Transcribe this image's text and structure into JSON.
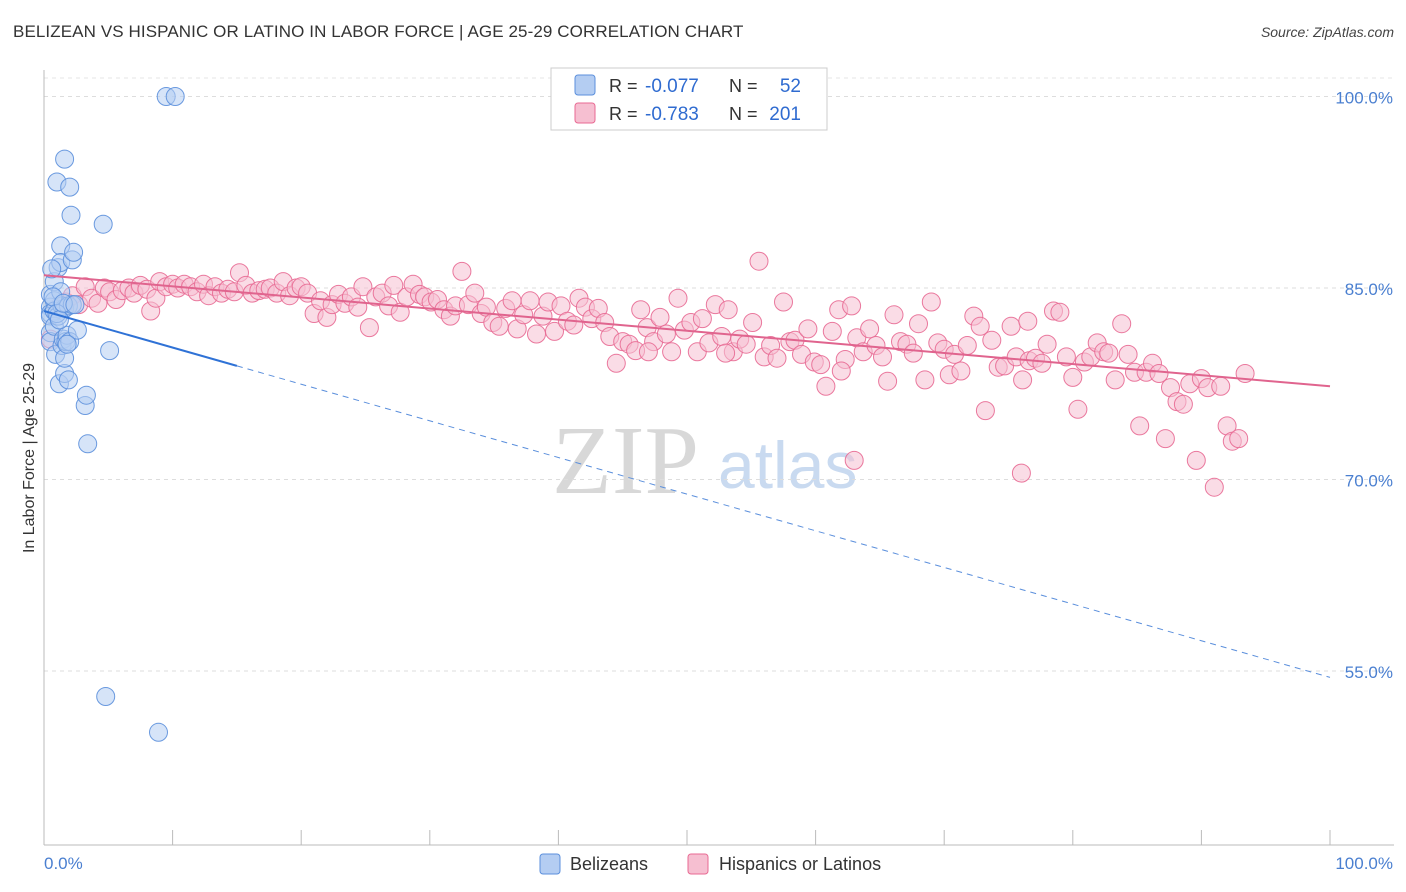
{
  "header": {
    "title": "BELIZEAN VS HISPANIC OR LATINO IN LABOR FORCE | AGE 25-29 CORRELATION CHART",
    "source": "Source: ZipAtlas.com"
  },
  "watermark": {
    "zip": "ZIP",
    "atlas": "atlas"
  },
  "colors": {
    "belizean": "#5b8fdc",
    "belizean_fill": "#b4cdf2",
    "hispanic": "#e86a93",
    "hispanic_fill": "#f6bfd1",
    "tick": "#4a7fd0"
  },
  "stats_legend": {
    "rows": [
      {
        "r_label": "R =",
        "r_value": "-0.077",
        "n_label": "N =",
        "n_value": "52"
      },
      {
        "r_label": "R =",
        "r_value": "-0.783",
        "n_label": "N =",
        "n_value": "201"
      }
    ]
  },
  "bottom_legend": {
    "items": [
      {
        "label": "Belizeans"
      },
      {
        "label": "Hispanics or Latinos"
      }
    ]
  },
  "chart_data": {
    "type": "scatter",
    "title": "BELIZEAN VS HISPANIC OR LATINO IN LABOR FORCE | AGE 25-29 CORRELATION CHART",
    "xlabel": "",
    "ylabel": "In Labor Force | Age 25-29",
    "xlim": [
      0,
      100
    ],
    "ylim": [
      40,
      102
    ],
    "x_tick_labels": [
      "0.0%",
      "100.0%"
    ],
    "y_ticks": [
      55,
      70,
      85,
      100
    ],
    "y_tick_labels": [
      "55.0%",
      "70.0%",
      "85.0%",
      "100.0%"
    ],
    "grid": true,
    "legend_position": "top-center",
    "series": [
      {
        "name": "Belizeans",
        "color": "#5b8fdc",
        "trend": {
          "x": [
            0,
            15
          ],
          "y": [
            83.2,
            78.9
          ],
          "dashed_extension_to": [
            100,
            54.5
          ]
        },
        "points": [
          [
            0.5,
            84.5
          ],
          [
            0.5,
            83.5
          ],
          [
            0.5,
            83.0
          ],
          [
            0.5,
            82.8
          ],
          [
            0.5,
            81.5
          ],
          [
            0.5,
            80.8
          ],
          [
            0.8,
            85.5
          ],
          [
            0.8,
            84.0
          ],
          [
            0.8,
            83.2
          ],
          [
            0.8,
            82.0
          ],
          [
            0.9,
            79.8
          ],
          [
            1.0,
            93.3
          ],
          [
            1.1,
            86.6
          ],
          [
            1.1,
            82.8
          ],
          [
            1.2,
            77.5
          ],
          [
            1.3,
            88.3
          ],
          [
            1.3,
            87.0
          ],
          [
            1.3,
            84.7
          ],
          [
            1.4,
            83.6
          ],
          [
            1.4,
            80.5
          ],
          [
            1.5,
            81.0
          ],
          [
            1.6,
            78.3
          ],
          [
            1.6,
            79.5
          ],
          [
            1.6,
            83.4
          ],
          [
            1.6,
            95.1
          ],
          [
            1.7,
            80.8
          ],
          [
            1.8,
            81.3
          ],
          [
            1.9,
            83.6
          ],
          [
            1.9,
            77.8
          ],
          [
            2.0,
            92.9
          ],
          [
            2.0,
            80.8
          ],
          [
            2.1,
            90.7
          ],
          [
            2.2,
            83.7
          ],
          [
            2.2,
            87.2
          ],
          [
            2.3,
            87.8
          ],
          [
            2.6,
            81.7
          ],
          [
            3.2,
            75.8
          ],
          [
            3.3,
            76.6
          ],
          [
            3.4,
            72.8
          ],
          [
            4.6,
            90.0
          ],
          [
            4.8,
            53.0
          ],
          [
            5.1,
            80.1
          ],
          [
            8.9,
            50.2
          ],
          [
            9.5,
            100.0
          ],
          [
            10.2,
            100.0
          ],
          [
            0.6,
            86.5
          ],
          [
            0.7,
            84.3
          ],
          [
            1.0,
            83.0
          ],
          [
            1.2,
            82.5
          ],
          [
            1.5,
            83.8
          ],
          [
            1.8,
            80.6
          ],
          [
            2.4,
            83.7
          ]
        ]
      },
      {
        "name": "Hispanics or Latinos",
        "color": "#e86a93",
        "trend": {
          "x": [
            0,
            100
          ],
          "y": [
            86.0,
            77.3
          ]
        },
        "points": [
          [
            0.5,
            81.0
          ],
          [
            1.0,
            83.4
          ],
          [
            1.7,
            83.9
          ],
          [
            2.2,
            84.4
          ],
          [
            2.7,
            83.7
          ],
          [
            3.2,
            85.1
          ],
          [
            3.7,
            84.2
          ],
          [
            4.2,
            83.8
          ],
          [
            4.7,
            85.0
          ],
          [
            5.1,
            84.7
          ],
          [
            5.6,
            84.1
          ],
          [
            6.1,
            84.8
          ],
          [
            6.6,
            85.0
          ],
          [
            7.0,
            84.6
          ],
          [
            7.5,
            85.2
          ],
          [
            8.0,
            84.9
          ],
          [
            8.3,
            83.2
          ],
          [
            8.7,
            84.2
          ],
          [
            9.0,
            85.5
          ],
          [
            9.5,
            85.1
          ],
          [
            10.0,
            85.3
          ],
          [
            10.4,
            85.0
          ],
          [
            10.9,
            85.3
          ],
          [
            11.4,
            85.1
          ],
          [
            11.9,
            84.7
          ],
          [
            12.4,
            85.3
          ],
          [
            12.8,
            84.4
          ],
          [
            13.3,
            85.1
          ],
          [
            13.8,
            84.6
          ],
          [
            14.3,
            84.9
          ],
          [
            14.8,
            84.7
          ],
          [
            15.2,
            86.2
          ],
          [
            15.7,
            85.2
          ],
          [
            16.2,
            84.6
          ],
          [
            16.7,
            84.8
          ],
          [
            17.2,
            84.9
          ],
          [
            17.6,
            85.0
          ],
          [
            18.1,
            84.6
          ],
          [
            18.6,
            85.5
          ],
          [
            19.1,
            84.4
          ],
          [
            19.6,
            85.0
          ],
          [
            20.0,
            85.1
          ],
          [
            20.5,
            84.6
          ],
          [
            21.0,
            83.0
          ],
          [
            21.5,
            84.0
          ],
          [
            22.0,
            82.7
          ],
          [
            22.4,
            83.7
          ],
          [
            22.9,
            84.5
          ],
          [
            23.4,
            83.8
          ],
          [
            23.9,
            84.3
          ],
          [
            24.4,
            83.5
          ],
          [
            24.8,
            85.1
          ],
          [
            25.3,
            81.9
          ],
          [
            25.8,
            84.3
          ],
          [
            26.3,
            84.6
          ],
          [
            26.8,
            83.6
          ],
          [
            27.2,
            85.2
          ],
          [
            27.7,
            83.1
          ],
          [
            28.2,
            84.3
          ],
          [
            28.7,
            85.3
          ],
          [
            29.2,
            84.5
          ],
          [
            29.6,
            84.3
          ],
          [
            30.1,
            83.9
          ],
          [
            30.6,
            84.1
          ],
          [
            31.1,
            83.3
          ],
          [
            31.6,
            82.8
          ],
          [
            32.0,
            83.6
          ],
          [
            32.5,
            86.3
          ],
          [
            33.0,
            83.7
          ],
          [
            33.5,
            84.6
          ],
          [
            34.0,
            83.0
          ],
          [
            34.4,
            83.5
          ],
          [
            34.9,
            82.3
          ],
          [
            35.4,
            82.0
          ],
          [
            35.9,
            83.4
          ],
          [
            36.4,
            84.0
          ],
          [
            36.8,
            81.8
          ],
          [
            37.3,
            82.9
          ],
          [
            37.8,
            84.0
          ],
          [
            38.3,
            81.4
          ],
          [
            38.8,
            82.8
          ],
          [
            39.2,
            83.9
          ],
          [
            39.7,
            81.6
          ],
          [
            40.2,
            83.6
          ],
          [
            40.7,
            82.4
          ],
          [
            41.2,
            82.1
          ],
          [
            41.6,
            84.2
          ],
          [
            42.1,
            83.5
          ],
          [
            42.6,
            82.6
          ],
          [
            43.1,
            83.4
          ],
          [
            43.6,
            82.3
          ],
          [
            44.0,
            81.2
          ],
          [
            44.5,
            79.1
          ],
          [
            45.0,
            80.8
          ],
          [
            45.5,
            80.6
          ],
          [
            46.0,
            80.1
          ],
          [
            46.4,
            83.3
          ],
          [
            46.9,
            81.9
          ],
          [
            47.4,
            80.8
          ],
          [
            47.9,
            82.7
          ],
          [
            48.4,
            81.4
          ],
          [
            48.8,
            80.0
          ],
          [
            49.3,
            84.2
          ],
          [
            49.8,
            81.7
          ],
          [
            50.3,
            82.3
          ],
          [
            50.8,
            80.0
          ],
          [
            51.2,
            82.6
          ],
          [
            51.7,
            80.7
          ],
          [
            52.2,
            83.7
          ],
          [
            52.7,
            81.2
          ],
          [
            53.2,
            83.3
          ],
          [
            53.6,
            80.0
          ],
          [
            54.1,
            81.0
          ],
          [
            54.6,
            80.6
          ],
          [
            55.1,
            82.3
          ],
          [
            55.6,
            87.1
          ],
          [
            56.0,
            79.6
          ],
          [
            56.5,
            80.5
          ],
          [
            57.0,
            79.5
          ],
          [
            57.5,
            83.9
          ],
          [
            58.0,
            80.8
          ],
          [
            58.4,
            80.9
          ],
          [
            58.9,
            79.8
          ],
          [
            59.4,
            81.8
          ],
          [
            59.9,
            79.2
          ],
          [
            60.4,
            79.0
          ],
          [
            60.8,
            77.3
          ],
          [
            61.3,
            81.6
          ],
          [
            61.8,
            83.3
          ],
          [
            62.3,
            79.4
          ],
          [
            62.8,
            83.6
          ],
          [
            63.2,
            81.1
          ],
          [
            63.7,
            80.0
          ],
          [
            64.2,
            81.8
          ],
          [
            64.7,
            80.5
          ],
          [
            65.2,
            79.6
          ],
          [
            65.6,
            77.7
          ],
          [
            66.1,
            82.9
          ],
          [
            66.6,
            80.8
          ],
          [
            67.1,
            80.6
          ],
          [
            67.6,
            79.9
          ],
          [
            68.0,
            82.2
          ],
          [
            68.5,
            77.8
          ],
          [
            69.0,
            83.9
          ],
          [
            69.5,
            80.7
          ],
          [
            70.0,
            80.2
          ],
          [
            70.4,
            78.2
          ],
          [
            70.8,
            79.8
          ],
          [
            71.3,
            78.5
          ],
          [
            71.8,
            80.5
          ],
          [
            72.3,
            82.8
          ],
          [
            72.8,
            82.0
          ],
          [
            73.2,
            75.4
          ],
          [
            73.7,
            80.9
          ],
          [
            74.2,
            78.8
          ],
          [
            74.7,
            78.9
          ],
          [
            75.2,
            82.0
          ],
          [
            75.6,
            79.6
          ],
          [
            76.1,
            77.8
          ],
          [
            76.6,
            79.3
          ],
          [
            77.1,
            79.5
          ],
          [
            77.6,
            79.1
          ],
          [
            78.0,
            80.6
          ],
          [
            78.5,
            83.2
          ],
          [
            79.0,
            83.1
          ],
          [
            79.5,
            79.6
          ],
          [
            80.0,
            78.0
          ],
          [
            80.4,
            75.5
          ],
          [
            80.9,
            79.2
          ],
          [
            81.4,
            79.6
          ],
          [
            81.9,
            80.7
          ],
          [
            82.4,
            80.0
          ],
          [
            82.8,
            79.9
          ],
          [
            83.3,
            77.8
          ],
          [
            83.8,
            82.2
          ],
          [
            84.3,
            79.8
          ],
          [
            84.8,
            78.4
          ],
          [
            85.2,
            74.2
          ],
          [
            85.7,
            78.4
          ],
          [
            86.2,
            79.1
          ],
          [
            86.7,
            78.3
          ],
          [
            87.2,
            73.2
          ],
          [
            87.6,
            77.2
          ],
          [
            88.1,
            76.1
          ],
          [
            88.6,
            75.9
          ],
          [
            89.1,
            77.5
          ],
          [
            89.6,
            71.5
          ],
          [
            90.0,
            77.9
          ],
          [
            90.5,
            77.2
          ],
          [
            91.0,
            69.4
          ],
          [
            91.5,
            77.3
          ],
          [
            92.0,
            74.2
          ],
          [
            92.4,
            73.0
          ],
          [
            92.9,
            73.2
          ],
          [
            93.4,
            78.3
          ],
          [
            76.0,
            70.5
          ],
          [
            76.5,
            82.4
          ],
          [
            62.0,
            78.5
          ],
          [
            53.0,
            79.9
          ],
          [
            47.0,
            80.0
          ],
          [
            63.0,
            71.5
          ]
        ]
      }
    ]
  }
}
